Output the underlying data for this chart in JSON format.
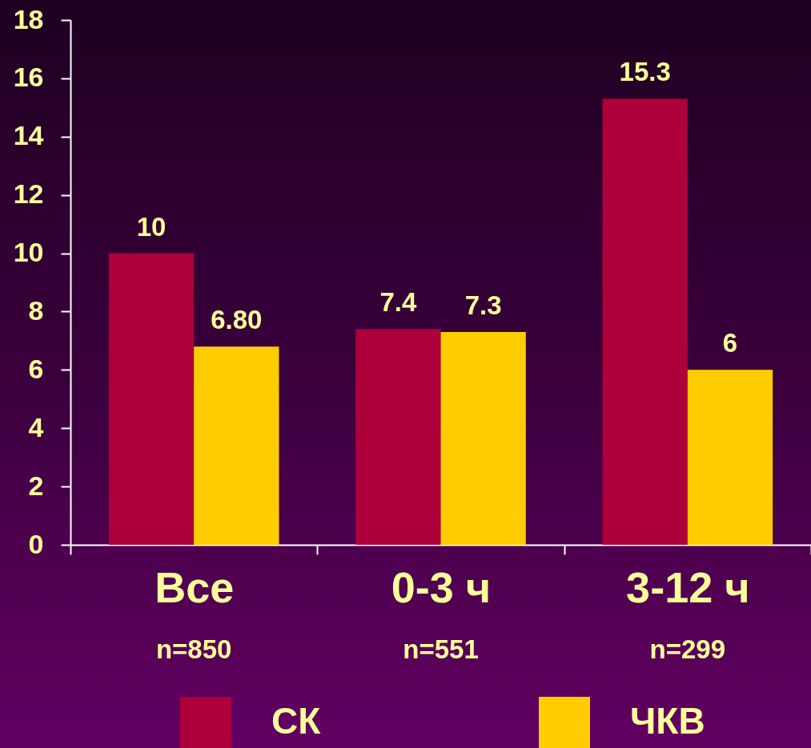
{
  "chart_data": {
    "type": "bar",
    "categories": [
      "Все",
      "0-3 ч",
      "3-12 ч"
    ],
    "series": [
      {
        "name": "СК",
        "color": "#ae003a",
        "values": [
          10,
          7.4,
          15.3
        ],
        "value_labels": [
          "10",
          "7.4",
          "15.3"
        ]
      },
      {
        "name": "ЧКВ",
        "color": "#ffcc00",
        "values": [
          6.8,
          7.3,
          6
        ],
        "value_labels": [
          "6.80",
          "7.3",
          "6"
        ]
      }
    ],
    "ylim": [
      0,
      18
    ],
    "yticks": [
      0,
      2,
      4,
      6,
      8,
      10,
      12,
      14,
      16,
      18
    ],
    "annotations": [
      "n=850",
      "n=551",
      "n=299"
    ],
    "legend": "bottom"
  }
}
